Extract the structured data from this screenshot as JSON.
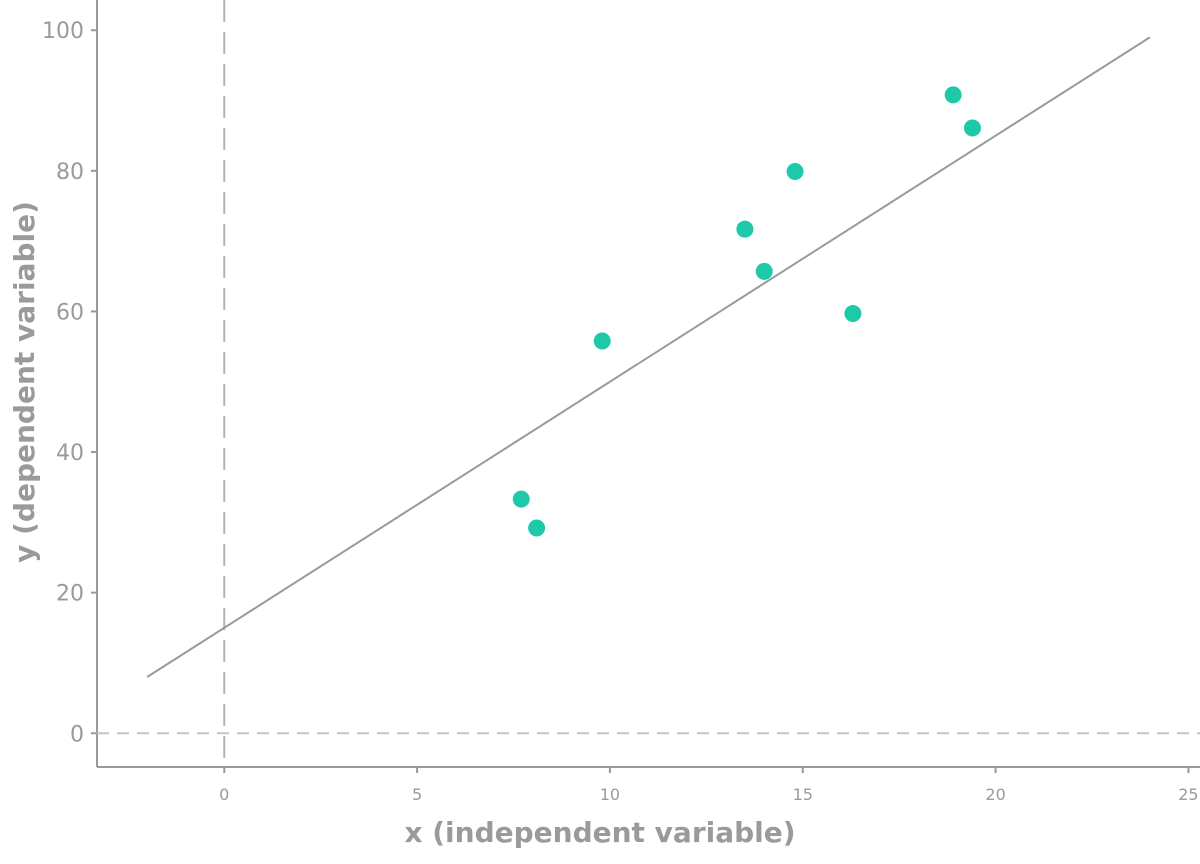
{
  "chart_data": {
    "type": "scatter",
    "x_label": "x (independent variable)",
    "y_label": "y (dependent variable)",
    "x": [
      7.7,
      8.1,
      9.8,
      13.5,
      14.0,
      14.8,
      16.3,
      18.9,
      19.4
    ],
    "values": [
      33.3,
      29.2,
      55.8,
      71.7,
      65.7,
      79.9,
      59.7,
      90.8,
      86.1
    ],
    "color": "#1dc9a8",
    "trendline": {
      "x": [
        -2,
        24
      ],
      "values": [
        8,
        99
      ],
      "color": "#9a9a9a"
    },
    "xlim": [
      -3.3,
      25.3
    ],
    "xticks": [
      0,
      5,
      10,
      15,
      20,
      25
    ],
    "ylim": [
      -4.8,
      104.3
    ],
    "yticks": [
      0,
      20,
      40,
      60,
      80,
      100
    ]
  }
}
